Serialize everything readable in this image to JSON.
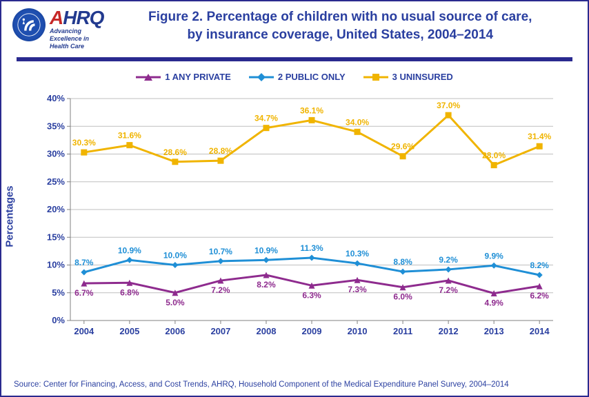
{
  "logo": {
    "ahrq": "AHRQ",
    "tagline_l1": "Advancing",
    "tagline_l2": "Excellence in",
    "tagline_l3": "Health Care"
  },
  "title_l1": "Figure 2. Percentage of children with no usual source of care,",
  "title_l2": "by insurance coverage, United States, 2004–2014",
  "chart": {
    "type": "line",
    "categories": [
      "2004",
      "2005",
      "2006",
      "2007",
      "2008",
      "2009",
      "2010",
      "2011",
      "2012",
      "2013",
      "2014"
    ],
    "ylabel": "Percentages",
    "ylim": [
      0,
      40
    ],
    "ytick_step": 5,
    "background_color": "#ffffff",
    "grid_color": "#bfbfbf",
    "axis_color": "#808080",
    "tick_label_color": "#2a3fa0",
    "tick_fontsize": 13,
    "tick_fontweight": 700,
    "label_fontsize": 15,
    "datalabel_fontsize": 12,
    "datalabel_fontweight": 700,
    "line_width": 3,
    "marker_size": 9,
    "series": [
      {
        "name": "1 ANY PRIVATE",
        "color": "#8e2b8e",
        "marker": "triangle",
        "values": [
          6.7,
          6.8,
          5.0,
          7.2,
          8.2,
          6.3,
          7.3,
          6.0,
          7.2,
          4.9,
          6.2
        ],
        "label_pos": "below"
      },
      {
        "name": "2 PUBLIC ONLY",
        "color": "#1f8fd6",
        "marker": "diamond",
        "values": [
          8.7,
          10.9,
          10.0,
          10.7,
          10.9,
          11.3,
          10.3,
          8.8,
          9.2,
          9.9,
          8.2
        ],
        "label_pos": "above"
      },
      {
        "name": "3 UNINSURED",
        "color": "#f0b400",
        "marker": "square",
        "values": [
          30.3,
          31.6,
          28.6,
          28.8,
          34.7,
          36.1,
          34.0,
          29.6,
          37.0,
          28.0,
          31.4
        ],
        "label_pos": "above"
      }
    ]
  },
  "source": "Source: Center for Financing, Access, and Cost Trends, AHRQ, Household Component of the Medical Expenditure Panel Survey, 2004–2014"
}
